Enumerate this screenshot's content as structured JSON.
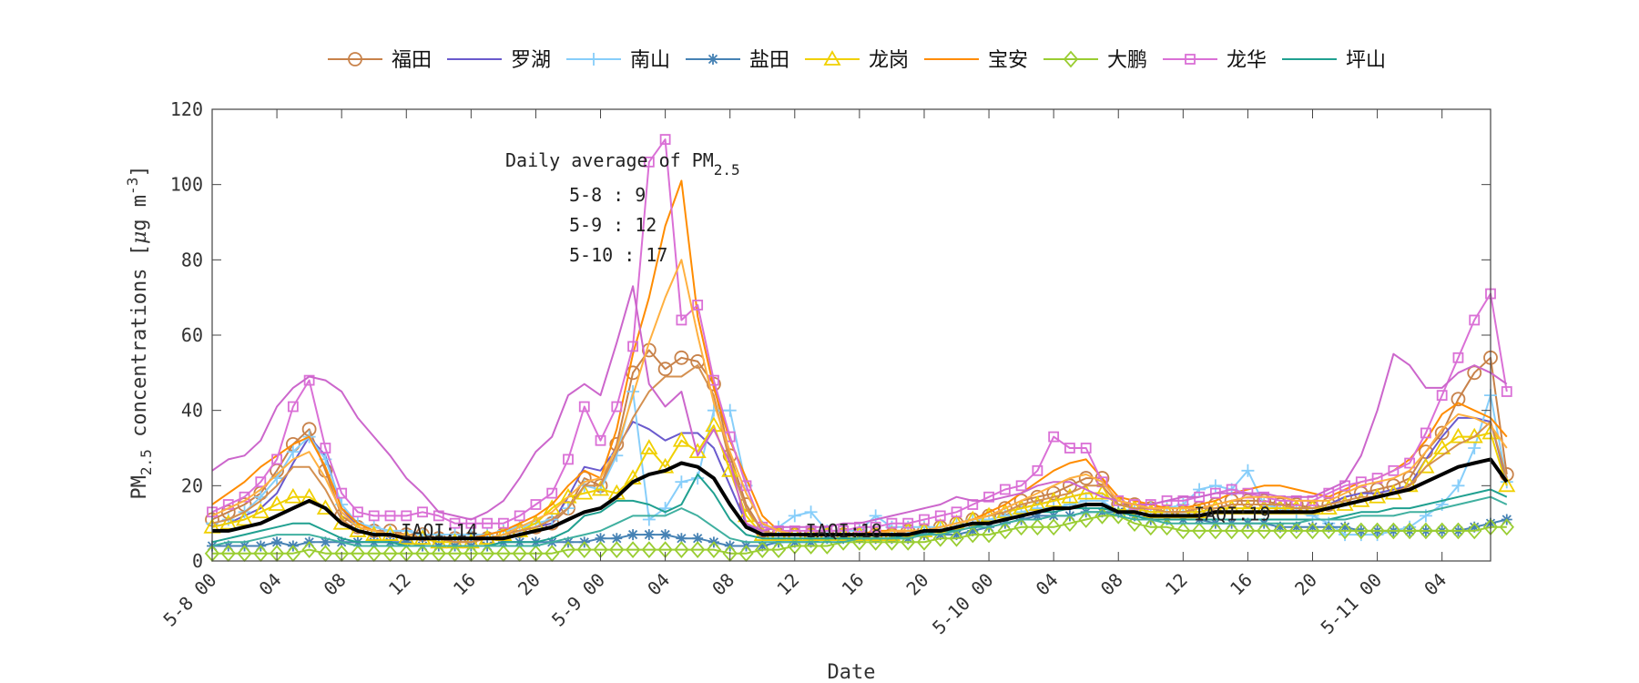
{
  "chart_data": {
    "type": "line",
    "xlabel": "Date",
    "ylabel": "PM",
    "ylabel_sub": "2.5",
    "ylabel_rest": " concentrations [",
    "ylabel_mu": "μ",
    "ylabel_unit": "g m",
    "ylabel_exp": "-3",
    "ylabel_close": "]",
    "ylim": [
      0,
      120
    ],
    "yticks": [
      0,
      20,
      40,
      60,
      80,
      100,
      120
    ],
    "xlim": [
      0,
      79
    ],
    "xticks": [
      {
        "x": 0,
        "label": "5-8 00"
      },
      {
        "x": 4,
        "label": "04"
      },
      {
        "x": 8,
        "label": "08"
      },
      {
        "x": 12,
        "label": "12"
      },
      {
        "x": 16,
        "label": "16"
      },
      {
        "x": 20,
        "label": "20"
      },
      {
        "x": 24,
        "label": "5-9 00"
      },
      {
        "x": 28,
        "label": "04"
      },
      {
        "x": 32,
        "label": "08"
      },
      {
        "x": 36,
        "label": "12"
      },
      {
        "x": 40,
        "label": "16"
      },
      {
        "x": 44,
        "label": "20"
      },
      {
        "x": 48,
        "label": "5-10 00"
      },
      {
        "x": 52,
        "label": "04"
      },
      {
        "x": 56,
        "label": "08"
      },
      {
        "x": 60,
        "label": "12"
      },
      {
        "x": 64,
        "label": "16"
      },
      {
        "x": 68,
        "label": "20"
      },
      {
        "x": 72,
        "label": "5-11 00"
      },
      {
        "x": 76,
        "label": "04"
      }
    ],
    "grid": false,
    "legend_position": "top",
    "annotation": {
      "title": "Daily average of PM",
      "title_sub": "2.5",
      "lines": [
        "5-8  : 9",
        "5-9  : 12",
        "5-10  : 17"
      ]
    },
    "iaqi_labels": [
      {
        "x": 12,
        "y": 7.5,
        "text": "IAQI:14"
      },
      {
        "x": 37,
        "y": 7.5,
        "text": "IAQI:18"
      },
      {
        "x": 61,
        "y": 12,
        "text": "IAQI:19"
      }
    ],
    "series": [
      {
        "name": "福田",
        "color": "#c8824a",
        "marker": "circle",
        "legend": true,
        "values": [
          11,
          13,
          15,
          18,
          24,
          31,
          35,
          24,
          12,
          9,
          8,
          8,
          7,
          7,
          6,
          6,
          6,
          6,
          7,
          8,
          9,
          10,
          14,
          22,
          20,
          31,
          50,
          56,
          51,
          54,
          53,
          47,
          28,
          15,
          8,
          7,
          7,
          7,
          7,
          7,
          7,
          7,
          7,
          8,
          8,
          9,
          10,
          11,
          12,
          14,
          16,
          17,
          18,
          20,
          22,
          22,
          15,
          15,
          14,
          13,
          13,
          14,
          15,
          16,
          16,
          16,
          15,
          15,
          14,
          15,
          17,
          18,
          19,
          20,
          22,
          29,
          34,
          43,
          50,
          54,
          23
        ]
      },
      {
        "name": "罗湖",
        "color": "#6a5acd",
        "marker": "none",
        "legend": true,
        "values": [
          9,
          10,
          12,
          14,
          18,
          26,
          33,
          28,
          14,
          9,
          8,
          7,
          7,
          6,
          6,
          6,
          6,
          7,
          8,
          8,
          9,
          10,
          17,
          25,
          24,
          30,
          37,
          35,
          32,
          34,
          34,
          30,
          20,
          10,
          7,
          7,
          7,
          7,
          7,
          7,
          7,
          7,
          7,
          8,
          8,
          9,
          10,
          11,
          12,
          13,
          14,
          15,
          16,
          17,
          18,
          18,
          15,
          14,
          13,
          13,
          13,
          13,
          14,
          15,
          15,
          15,
          14,
          14,
          14,
          15,
          17,
          18,
          18,
          19,
          20,
          27,
          33,
          38,
          38,
          37,
          21
        ]
      },
      {
        "name": "南山",
        "color": "#87cefa",
        "marker": "plus",
        "legend": true,
        "values": [
          10,
          11,
          13,
          17,
          22,
          29,
          33,
          27,
          15,
          10,
          9,
          8,
          8,
          7,
          7,
          7,
          7,
          7,
          8,
          9,
          10,
          11,
          14,
          20,
          19,
          28,
          45,
          11,
          14,
          21,
          22,
          40,
          40,
          20,
          9,
          9,
          12,
          13,
          8,
          8,
          8,
          12,
          9,
          9,
          9,
          9,
          10,
          11,
          11,
          12,
          13,
          14,
          14,
          15,
          16,
          16,
          13,
          14,
          14,
          14,
          15,
          19,
          20,
          19,
          24,
          15,
          14,
          13,
          12,
          10,
          7,
          7,
          7,
          8,
          9,
          12,
          15,
          20,
          30,
          44,
          21
        ]
      },
      {
        "name": "盐田",
        "color": "#4682b4",
        "marker": "star",
        "legend": true,
        "values": [
          4,
          4,
          4,
          4,
          5,
          4,
          5,
          5,
          5,
          5,
          5,
          5,
          5,
          4,
          4,
          4,
          4,
          4,
          5,
          5,
          5,
          5,
          5,
          5,
          6,
          6,
          7,
          7,
          7,
          6,
          6,
          5,
          4,
          4,
          4,
          5,
          5,
          5,
          6,
          6,
          6,
          6,
          6,
          6,
          7,
          7,
          7,
          8,
          9,
          10,
          11,
          12,
          12,
          12,
          13,
          13,
          13,
          12,
          11,
          11,
          11,
          11,
          10,
          10,
          10,
          10,
          9,
          9,
          9,
          9,
          9,
          8,
          8,
          8,
          8,
          8,
          8,
          8,
          9,
          10,
          11
        ]
      },
      {
        "name": "龙岗",
        "color": "#f0d000",
        "marker": "triangle",
        "legend": true,
        "values": [
          9,
          10,
          11,
          13,
          15,
          17,
          17,
          14,
          10,
          8,
          7,
          7,
          6,
          6,
          5,
          5,
          5,
          6,
          7,
          8,
          10,
          14,
          17,
          18,
          19,
          18,
          22,
          30,
          25,
          32,
          29,
          36,
          24,
          12,
          7,
          7,
          7,
          7,
          7,
          7,
          7,
          7,
          7,
          8,
          8,
          9,
          10,
          11,
          12,
          13,
          14,
          15,
          16,
          17,
          18,
          18,
          15,
          14,
          13,
          13,
          13,
          13,
          14,
          14,
          14,
          14,
          14,
          14,
          14,
          14,
          15,
          16,
          17,
          18,
          20,
          25,
          30,
          33,
          33,
          34,
          20
        ]
      },
      {
        "name": "宝安",
        "color": "#ff8c00",
        "marker": "none",
        "legend": true,
        "values": [
          15,
          18,
          21,
          25,
          28,
          31,
          33,
          25,
          14,
          10,
          8,
          7,
          7,
          6,
          6,
          6,
          6,
          7,
          8,
          10,
          12,
          15,
          20,
          24,
          22,
          35,
          55,
          70,
          89,
          101,
          65,
          46,
          32,
          22,
          12,
          8,
          7,
          7,
          7,
          7,
          7,
          8,
          8,
          8,
          8,
          9,
          10,
          11,
          13,
          15,
          18,
          21,
          24,
          26,
          27,
          22,
          17,
          16,
          15,
          14,
          14,
          15,
          16,
          18,
          19,
          20,
          20,
          19,
          18,
          17,
          19,
          21,
          22,
          24,
          27,
          32,
          39,
          42,
          40,
          38,
          33
        ]
      },
      {
        "name": "大鹏",
        "color": "#9acd32",
        "marker": "diamond",
        "legend": true,
        "values": [
          2,
          2,
          2,
          2,
          2,
          2,
          3,
          2,
          2,
          2,
          2,
          2,
          2,
          2,
          2,
          2,
          2,
          2,
          2,
          2,
          2,
          2,
          3,
          3,
          3,
          3,
          3,
          3,
          3,
          3,
          3,
          3,
          2,
          2,
          3,
          3,
          4,
          4,
          4,
          5,
          5,
          5,
          5,
          5,
          5,
          6,
          6,
          7,
          7,
          8,
          9,
          9,
          9,
          10,
          11,
          12,
          12,
          10,
          9,
          9,
          8,
          8,
          8,
          8,
          8,
          8,
          8,
          8,
          8,
          8,
          8,
          8,
          8,
          8,
          8,
          8,
          8,
          8,
          8,
          9,
          9
        ]
      },
      {
        "name": "龙华",
        "color": "#da70d6",
        "marker": "square",
        "legend": true,
        "values": [
          13,
          15,
          17,
          21,
          27,
          41,
          48,
          30,
          18,
          13,
          12,
          12,
          12,
          13,
          12,
          10,
          10,
          10,
          10,
          12,
          15,
          18,
          27,
          41,
          32,
          41,
          57,
          106,
          112,
          64,
          68,
          48,
          33,
          20,
          9,
          8,
          8,
          8,
          8,
          8,
          9,
          9,
          10,
          10,
          11,
          12,
          13,
          15,
          17,
          19,
          20,
          24,
          33,
          30,
          30,
          21,
          16,
          15,
          15,
          16,
          16,
          17,
          18,
          19,
          18,
          17,
          16,
          16,
          16,
          18,
          20,
          21,
          22,
          24,
          26,
          34,
          44,
          54,
          64,
          71,
          45
        ]
      },
      {
        "name": "坪山",
        "color": "#20a090",
        "marker": "none",
        "legend": true,
        "values": [
          5,
          6,
          7,
          8,
          9,
          10,
          10,
          8,
          6,
          5,
          5,
          5,
          4,
          4,
          4,
          4,
          4,
          4,
          5,
          5,
          5,
          6,
          8,
          12,
          13,
          16,
          16,
          15,
          13,
          15,
          23,
          18,
          11,
          7,
          6,
          6,
          6,
          6,
          6,
          6,
          6,
          6,
          6,
          7,
          7,
          8,
          8,
          9,
          10,
          11,
          12,
          13,
          13,
          14,
          14,
          14,
          13,
          12,
          11,
          11,
          11,
          11,
          11,
          11,
          11,
          11,
          11,
          11,
          11,
          11,
          12,
          13,
          13,
          14,
          14,
          15,
          16,
          17,
          18,
          19,
          17
        ]
      },
      {
        "name": "",
        "color": "#d49050",
        "marker": "none",
        "legend": false,
        "values": [
          10,
          11,
          13,
          16,
          20,
          25,
          25,
          19,
          11,
          8,
          7,
          7,
          6,
          6,
          6,
          5,
          5,
          6,
          7,
          8,
          9,
          11,
          14,
          20,
          20,
          29,
          38,
          45,
          49,
          49,
          52,
          44,
          26,
          14,
          8,
          7,
          7,
          7,
          7,
          7,
          7,
          7,
          7,
          8,
          8,
          9,
          10,
          11,
          12,
          13,
          15,
          16,
          17,
          18,
          20,
          20,
          15,
          14,
          14,
          13,
          13,
          14,
          14,
          15,
          15,
          15,
          15,
          14,
          14,
          15,
          16,
          17,
          17,
          18,
          20,
          25,
          28,
          31,
          33,
          37,
          22
        ]
      },
      {
        "name": "",
        "color": "#cc66cc",
        "marker": "none",
        "legend": true,
        "values": [
          24,
          27,
          28,
          32,
          41,
          46,
          49,
          48,
          45,
          38,
          33,
          28,
          22,
          18,
          13,
          12,
          11,
          13,
          16,
          22,
          29,
          33,
          44,
          47,
          44,
          58,
          73,
          47,
          41,
          45,
          28,
          35,
          26,
          10,
          8,
          9,
          9,
          9,
          9,
          10,
          10,
          11,
          12,
          13,
          14,
          15,
          17,
          16,
          16,
          17,
          18,
          20,
          21,
          21,
          19,
          17,
          16,
          15,
          15,
          16,
          17,
          17,
          18,
          18,
          18,
          18,
          17,
          17,
          17,
          19,
          21,
          28,
          40,
          55,
          52,
          46,
          46,
          50,
          52,
          50,
          47
        ]
      },
      {
        "name": "",
        "color": "#40b0a0",
        "marker": "none",
        "legend": false,
        "values": [
          4,
          5,
          5,
          6,
          7,
          7,
          7,
          6,
          5,
          4,
          4,
          4,
          4,
          4,
          4,
          4,
          4,
          4,
          4,
          4,
          4,
          5,
          6,
          7,
          8,
          10,
          12,
          12,
          12,
          14,
          12,
          9,
          6,
          5,
          5,
          5,
          5,
          5,
          5,
          5,
          6,
          6,
          6,
          6,
          7,
          7,
          8,
          9,
          9,
          10,
          11,
          11,
          12,
          12,
          13,
          13,
          12,
          11,
          11,
          10,
          10,
          10,
          10,
          10,
          10,
          10,
          10,
          10,
          11,
          11,
          11,
          12,
          12,
          12,
          13,
          13,
          14,
          15,
          16,
          17,
          15
        ]
      },
      {
        "name": "",
        "color": "#ffb040",
        "marker": "none",
        "legend": false,
        "values": [
          12,
          14,
          16,
          19,
          23,
          27,
          29,
          22,
          13,
          9,
          8,
          7,
          7,
          6,
          6,
          6,
          6,
          6,
          7,
          9,
          11,
          13,
          17,
          21,
          22,
          30,
          44,
          58,
          70,
          80,
          60,
          42,
          29,
          18,
          10,
          8,
          7,
          7,
          7,
          7,
          7,
          7,
          8,
          8,
          8,
          9,
          10,
          11,
          12,
          14,
          16,
          18,
          20,
          22,
          23,
          21,
          16,
          15,
          14,
          14,
          14,
          14,
          15,
          16,
          17,
          17,
          17,
          16,
          16,
          16,
          18,
          20,
          21,
          22,
          24,
          29,
          35,
          39,
          38,
          36,
          30
        ]
      },
      {
        "name": "",
        "color": "#000000",
        "marker": "none",
        "legend": false,
        "width": 4,
        "values": [
          8,
          8,
          9,
          10,
          12,
          14,
          16,
          14,
          10,
          8,
          7,
          7,
          6,
          6,
          6,
          6,
          6,
          6,
          6,
          7,
          8,
          9,
          11,
          13,
          14,
          17,
          21,
          23,
          24,
          26,
          25,
          22,
          15,
          9,
          7,
          7,
          7,
          7,
          7,
          7,
          7,
          7,
          7,
          7,
          8,
          8,
          9,
          10,
          10,
          11,
          12,
          13,
          14,
          14,
          15,
          15,
          13,
          13,
          12,
          12,
          12,
          12,
          13,
          13,
          13,
          13,
          13,
          13,
          13,
          14,
          15,
          16,
          17,
          18,
          19,
          21,
          23,
          25,
          26,
          27,
          21
        ]
      }
    ]
  }
}
